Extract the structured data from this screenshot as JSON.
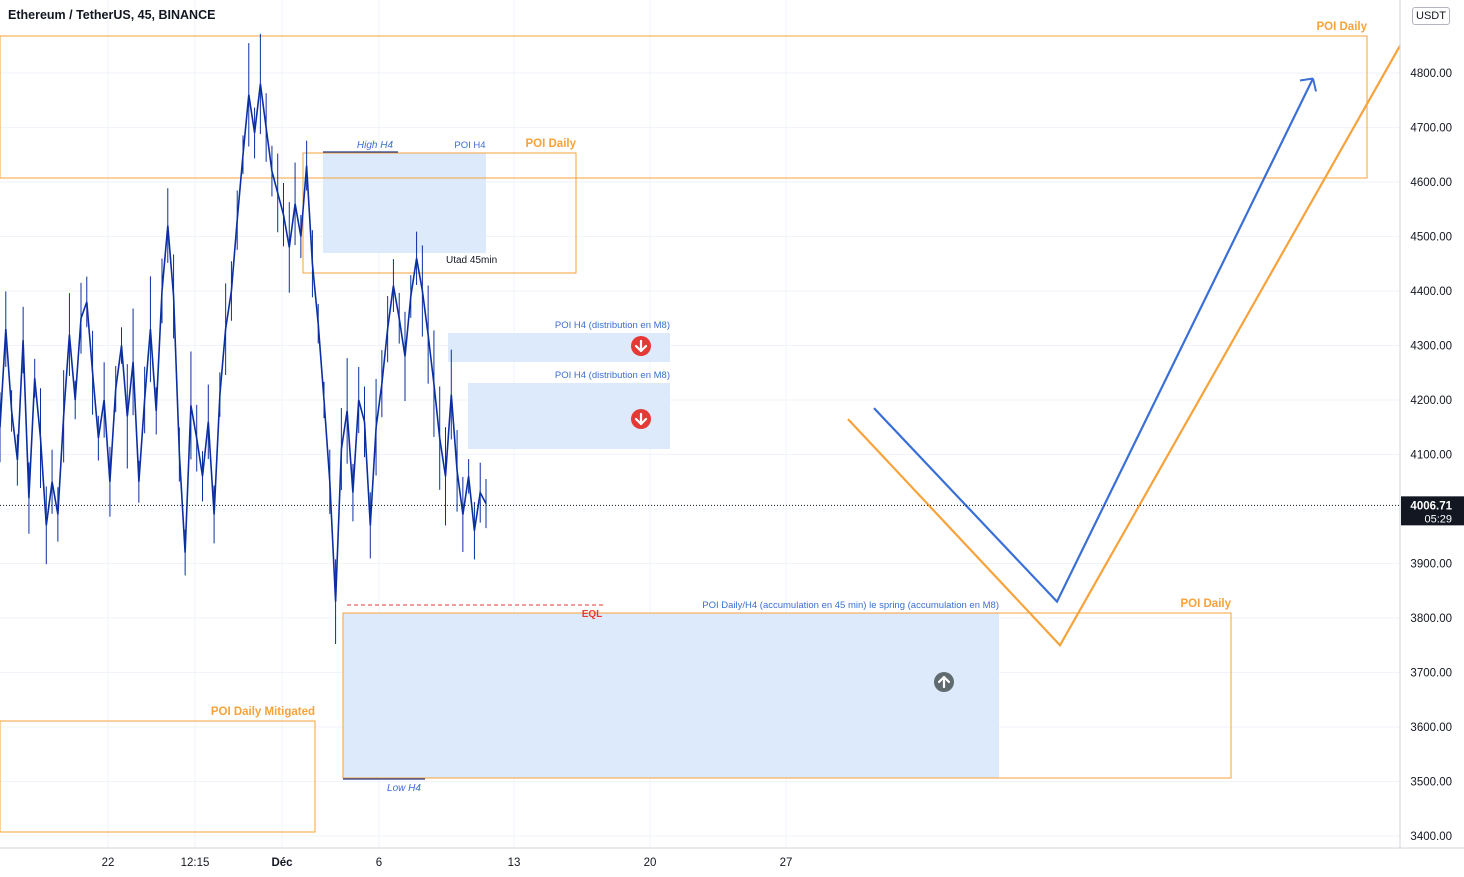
{
  "header": {
    "symbol_title": "Ethereum / TetherUS, 45, BINANCE",
    "currency": "USDT"
  },
  "colors": {
    "candles": "#0b2fa3",
    "orange": "#f7a23a",
    "blue_zone": "#dbe9fb",
    "blue_text": "#3b6fd1",
    "red": "#e53935",
    "grid": "#f0f3fa"
  },
  "chart_data": {
    "type": "line",
    "price_axis": {
      "ticks": [
        3400,
        3500,
        3600,
        3700,
        3800,
        3900,
        4000,
        4100,
        4200,
        4300,
        4400,
        4500,
        4600,
        4700,
        4800
      ],
      "tick_labels": [
        "3400.00",
        "3500.00",
        "3600.00",
        "3700.00",
        "3800.00",
        "3900.00",
        "4000.00",
        "4100.00",
        "4200.00",
        "4300.00",
        "4400.00",
        "4500.00",
        "4600.00",
        "4700.00",
        "4800.00"
      ],
      "range": [
        3380,
        4890
      ]
    },
    "time_axis": {
      "labels": [
        "22",
        "12:15",
        "Déc",
        "6",
        "13",
        "20",
        "27"
      ]
    },
    "last_price": {
      "value": 4006.71,
      "label": "4006.71",
      "countdown": "05:29"
    },
    "series": [
      {
        "values": [
          4150,
          4330,
          4180,
          4090,
          4310,
          4020,
          4240,
          4130,
          3970,
          4050,
          3990,
          4170,
          4320,
          4200,
          4350,
          4380,
          4250,
          4130,
          4200,
          4050,
          4220,
          4300,
          4170,
          4270,
          4050,
          4200,
          4330,
          4180,
          4400,
          4520,
          4390,
          4100,
          3920,
          4190,
          4130,
          4060,
          4160,
          3990,
          4210,
          4330,
          4400,
          4530,
          4650,
          4760,
          4690,
          4780,
          4700,
          4620,
          4580,
          4540,
          4480,
          4560,
          4500,
          4630,
          4450,
          4340,
          4200,
          4050,
          3830,
          4110,
          4180,
          4030,
          4200,
          4160,
          3970,
          4150,
          4230,
          4330,
          4410,
          4350,
          4280,
          4390,
          4460,
          4400,
          4320,
          4230,
          4130,
          4060,
          4210,
          4070,
          3990,
          4060,
          3960,
          4030,
          4010
        ]
      }
    ],
    "zones": [
      {
        "label": "POI Daily",
        "kind": "orange"
      },
      {
        "label": "POI Daily",
        "kind": "orange"
      },
      {
        "label": "POI Daily Mitigated",
        "kind": "orange"
      },
      {
        "label": "POI Daily",
        "kind": "orange"
      },
      {
        "label": "POI H4",
        "kind": "blue"
      },
      {
        "label": "POI H4 (distribution en M8)",
        "kind": "blue"
      },
      {
        "label": "POI H4 (distribution en M8)",
        "kind": "blue"
      },
      {
        "label": "POI Daily/H4 (accumulation en 45 min) le spring (accumulation en M8)",
        "kind": "blue"
      }
    ],
    "annotations": {
      "high_h4": "High H4",
      "low_h4": "Low H4",
      "utad": "Utad 45min",
      "eql": "EQL"
    },
    "projection": {
      "blue_path": [
        4185,
        3830,
        4790
      ],
      "orange_path": [
        4165,
        3750,
        4850
      ]
    },
    "grid": true
  }
}
